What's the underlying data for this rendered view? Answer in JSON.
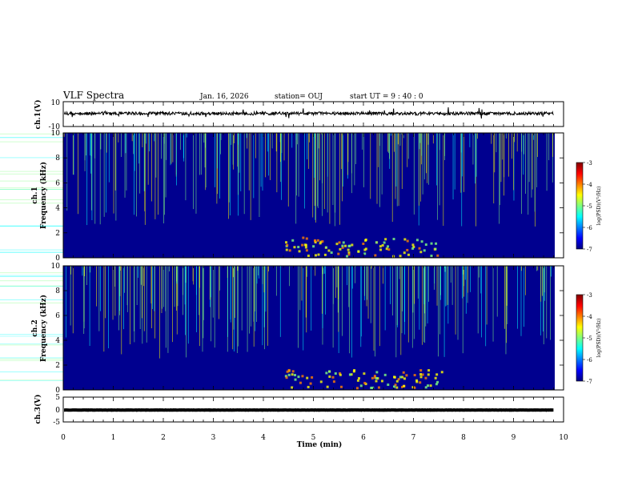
{
  "header": {
    "title": "VLF Spectra",
    "date": "Jan. 16, 2026",
    "station": "station= OUJ",
    "start": "start  UT =  9 : 40 : 0"
  },
  "chart_data": [
    {
      "type": "line",
      "name": "ch1-waveform",
      "ylabel": "ch.1(V)",
      "ylim": [
        -10,
        10
      ],
      "yticks": [
        "10",
        "-10"
      ],
      "xlim": [
        0,
        10
      ],
      "level": 0.5,
      "data_end_min": 9.8
    },
    {
      "type": "heatmap",
      "name": "ch1-spectrogram",
      "ylabel": "ch.1\nFrequency (kHz)",
      "xlim": [
        0,
        10
      ],
      "ylim": [
        0,
        10
      ],
      "yticks": [
        "0",
        "2",
        "4",
        "6",
        "8",
        "10"
      ],
      "colorbar": {
        "label": "log(PSD)(V²/Hz)",
        "range": [
          -7,
          -3
        ],
        "ticks": [
          "-3",
          "-4",
          "-5",
          "-6",
          "-7"
        ]
      }
    },
    {
      "type": "heatmap",
      "name": "ch2-spectrogram",
      "ylabel": "ch.2\nFrequency (kHz)",
      "xlim": [
        0,
        10
      ],
      "ylim": [
        0,
        10
      ],
      "yticks": [
        "0",
        "2",
        "4",
        "6",
        "8",
        "10"
      ],
      "colorbar": {
        "label": "log(PSD)(V²/Hz)",
        "range": [
          -7,
          -3
        ],
        "ticks": [
          "-3",
          "-4",
          "-5",
          "-6",
          "-7"
        ]
      }
    },
    {
      "type": "line",
      "name": "ch3-waveform",
      "ylabel": "ch.3(V)",
      "ylim": [
        -5,
        5
      ],
      "yticks": [
        "5",
        "0",
        "-5"
      ],
      "xlim": [
        0,
        10
      ],
      "level": -0.2,
      "data_end_min": 9.8
    }
  ],
  "xaxis": {
    "label": "Time (min)",
    "ticks": [
      "0",
      "1",
      "2",
      "3",
      "4",
      "5",
      "6",
      "7",
      "8",
      "9",
      "10"
    ]
  },
  "colors": {
    "jet": [
      "#00007f",
      "#0000ff",
      "#007fff",
      "#00ffff",
      "#7fff7f",
      "#ffff00",
      "#ff7f00",
      "#ff0000",
      "#7f0000"
    ]
  }
}
